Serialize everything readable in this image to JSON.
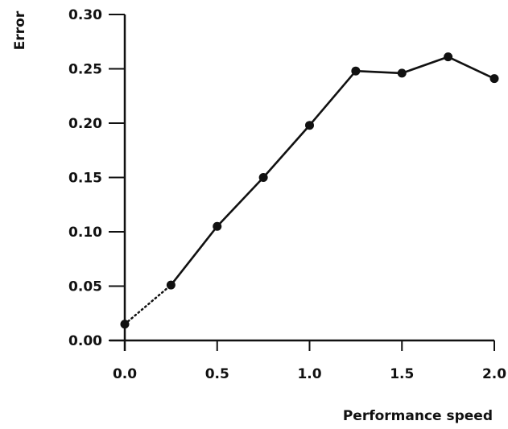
{
  "chart_data": {
    "type": "line",
    "title": "",
    "xlabel": "Performance speed",
    "ylabel": "Error",
    "xlim": [
      0.0,
      2.0
    ],
    "ylim": [
      0.0,
      0.3
    ],
    "x_ticks": [
      "0.0",
      "0.5",
      "1.0",
      "1.5",
      "2.0"
    ],
    "y_ticks": [
      "0.00",
      "0.05",
      "0.10",
      "0.15",
      "0.20",
      "0.25",
      "0.30"
    ],
    "grid": false,
    "legend": "none",
    "series": [
      {
        "x": [
          0.0,
          0.25,
          0.5,
          0.75,
          1.0,
          1.25,
          1.5,
          1.75,
          2.0
        ],
        "y": [
          0.015,
          0.051,
          0.105,
          0.15,
          0.198,
          0.248,
          0.246,
          0.261,
          0.241
        ],
        "dotted_segments": [
          0
        ],
        "color": "#111111"
      }
    ]
  }
}
